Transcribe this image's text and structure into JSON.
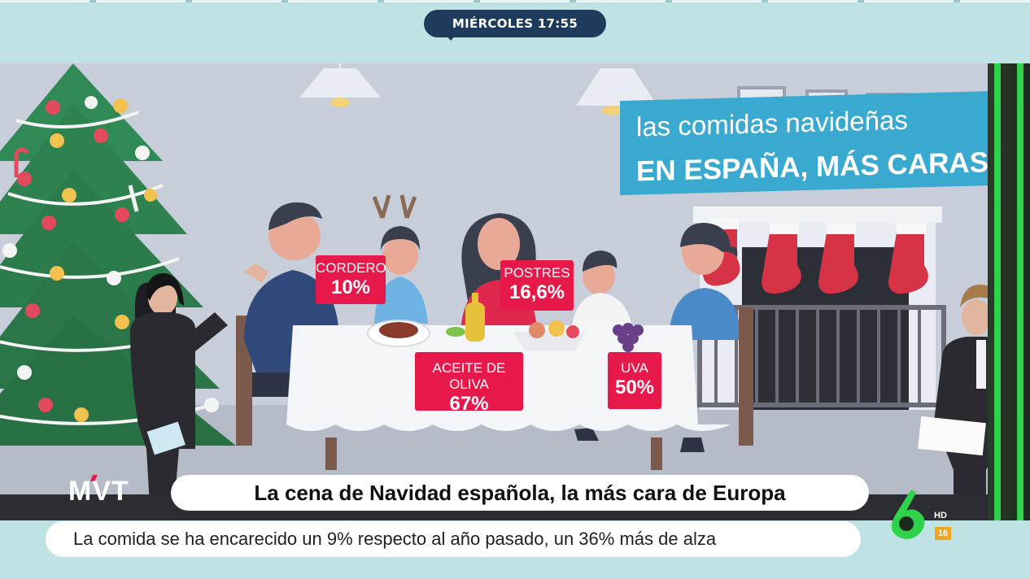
{
  "broadcast": {
    "day_time": "MIÉRCOLES 17:55",
    "program_logo": "MVT",
    "headline": "La cena de Navidad española, la más cara de Europa",
    "subline": "La comida se ha encarecido un 9% respecto al año pasado, un 36% más de alza",
    "channel_logo": "laSexta-6-logo-icon",
    "hd_mark": "HD",
    "age_rating": "16"
  },
  "graphic": {
    "title_line1": "las comidas navideñas",
    "title_line2": "EN ESPAÑA, MÁS CARAS",
    "tags": [
      {
        "label": "CORDERO",
        "value": "10%"
      },
      {
        "label": "POSTRES",
        "value": "16,6%"
      },
      {
        "label": "ACEITE DE OLIVA",
        "value": "67%"
      },
      {
        "label": "UVA",
        "value": "50%"
      }
    ]
  },
  "colors": {
    "accent_pink": "#e6194a",
    "title_blue": "#3aa9cf",
    "pill_navy": "#1f3b5c",
    "band_teal": "#bfe3e4",
    "channel_green": "#2fd34b"
  }
}
